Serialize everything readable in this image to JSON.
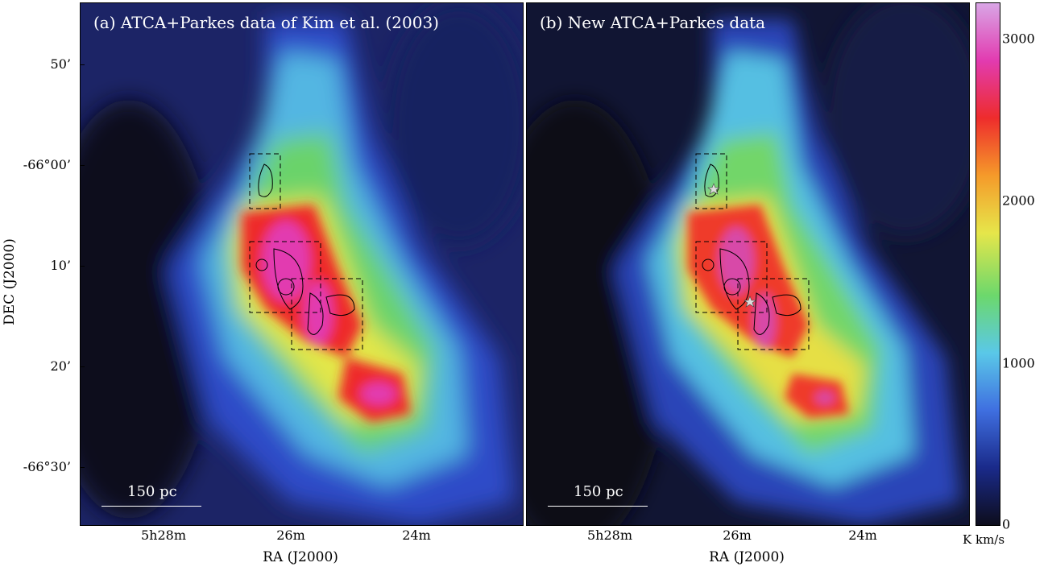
{
  "panels": [
    {
      "id": "a",
      "title": "(a) ATCA+Parkes data of Kim et al. (2003)",
      "scale_label": "150 pc"
    },
    {
      "id": "b",
      "title": "(b) New ATCA+Parkes data",
      "scale_label": "150 pc"
    }
  ],
  "axes": {
    "ylabel": "DEC (J2000)",
    "xlabel": "RA (J2000)",
    "yticks": [
      "50’",
      "-66°00’",
      "10’",
      "20’",
      "-66°30’"
    ],
    "xticks": [
      "5h28m",
      "26m",
      "24m"
    ]
  },
  "colorbar": {
    "ticks": [
      "3000",
      "2000",
      "1000",
      "0"
    ],
    "unit": "K km/s",
    "range": [
      0,
      3200
    ],
    "colors": [
      "#0d0d1c",
      "#1a2a8a",
      "#3f6fe0",
      "#5ac8e8",
      "#6cd86c",
      "#e6e64a",
      "#f59a2a",
      "#ee2c2c",
      "#e23bb0",
      "#d9a6e6"
    ]
  }
}
